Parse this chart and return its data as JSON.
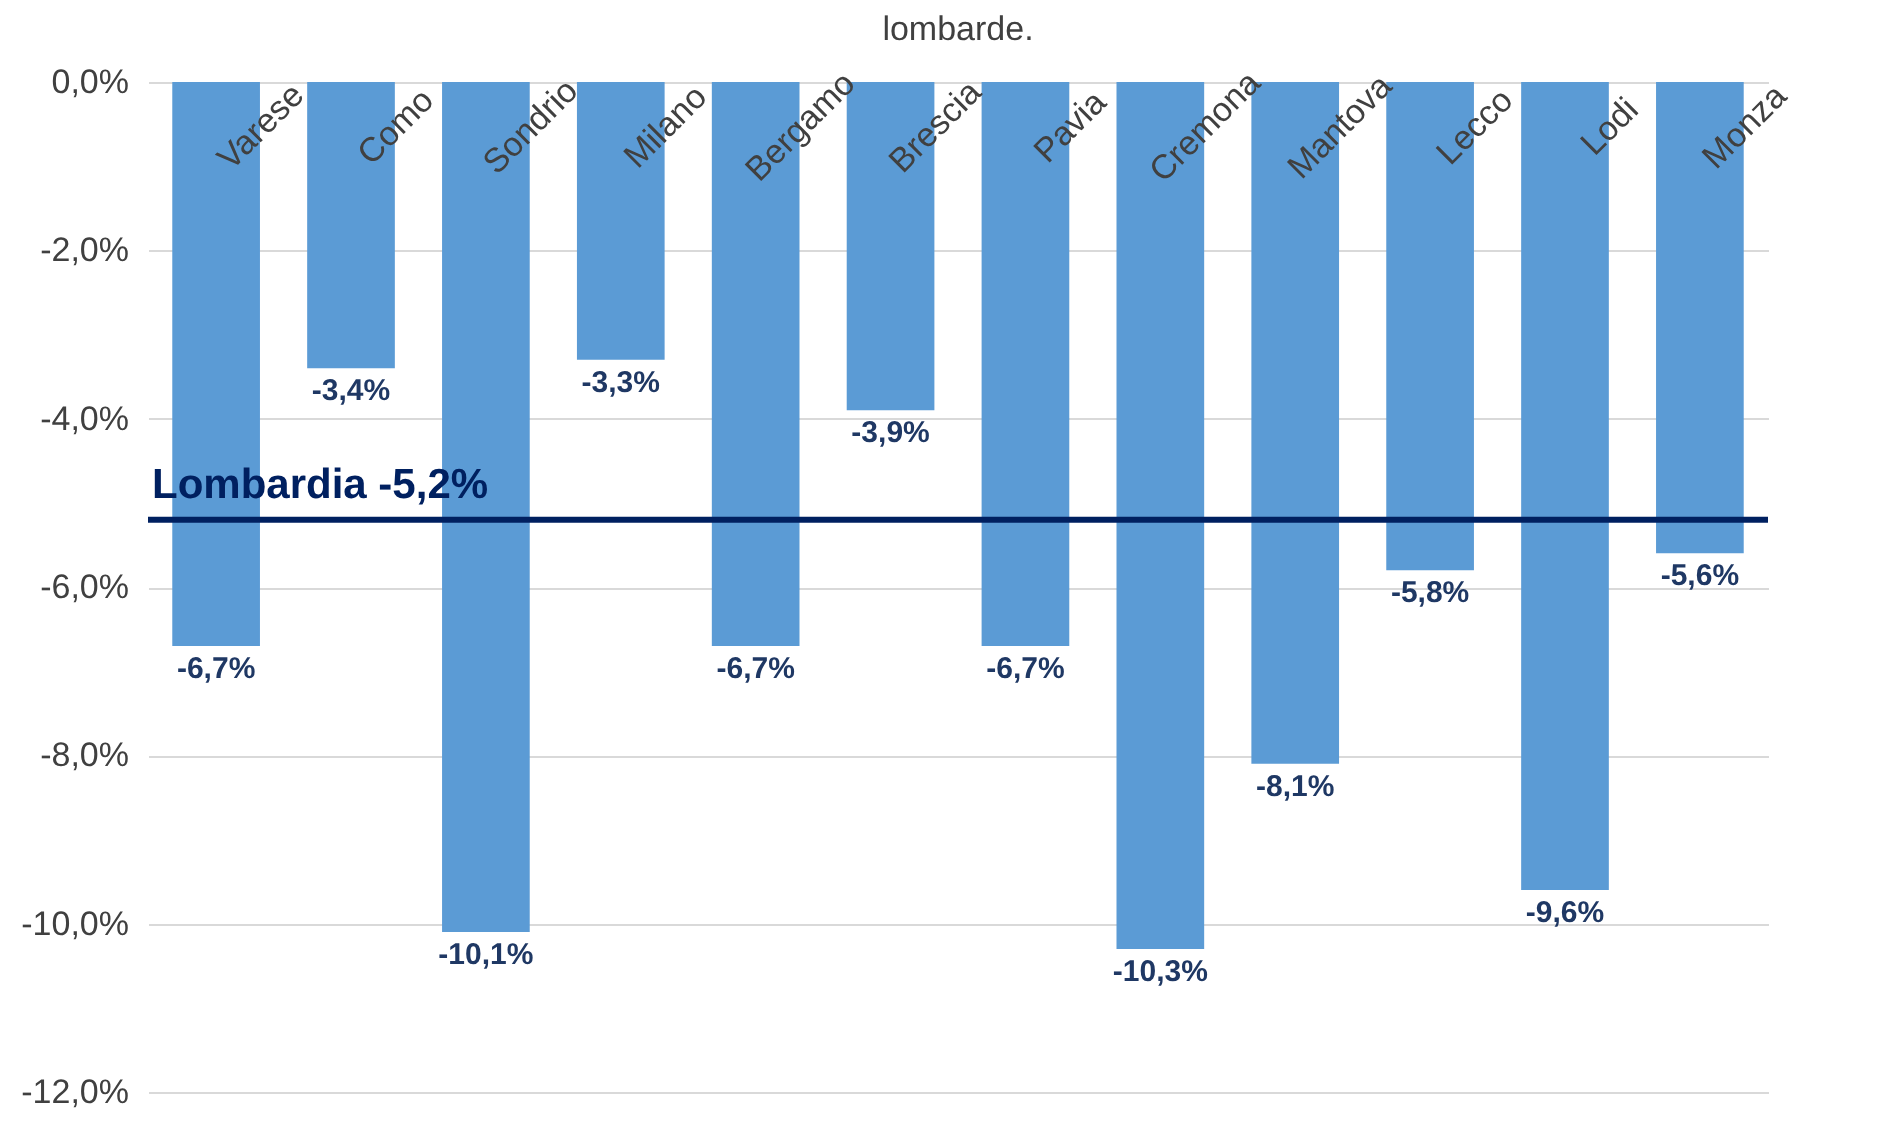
{
  "chart_data": {
    "type": "bar",
    "title": "lombarde.",
    "categories": [
      "Varese",
      "Como",
      "Sondrio",
      "Milano",
      "Bergamo",
      "Brescia",
      "Pavia",
      "Cremona",
      "Mantova",
      "Lecco",
      "Lodi",
      "Monza"
    ],
    "values": [
      -6.7,
      -3.4,
      -10.1,
      -3.3,
      -6.7,
      -3.9,
      -6.7,
      -10.3,
      -8.1,
      -5.8,
      -9.6,
      -5.6
    ],
    "value_labels": [
      "-6,7%",
      "-3,4%",
      "-10,1%",
      "-3,3%",
      "-6,7%",
      "-3,9%",
      "-6,7%",
      "-10,3%",
      "-8,1%",
      "-5,8%",
      "-9,6%",
      "-5,6%"
    ],
    "color": "#5b9bd5",
    "ylim": [
      -12,
      0
    ],
    "yticks": [
      {
        "value": 0,
        "label": "0,0%"
      },
      {
        "value": -2,
        "label": "-2,0%"
      },
      {
        "value": -4,
        "label": "-4,0%"
      },
      {
        "value": -6,
        "label": "-6,0%"
      },
      {
        "value": -8,
        "label": "-8,0%"
      },
      {
        "value": -10,
        "label": "-10,0%"
      },
      {
        "value": -12,
        "label": "-12,0%"
      }
    ],
    "grid": "y",
    "ref_lines": [
      {
        "axis": "y",
        "value": -5.2,
        "label": "Lombardia -5,2%",
        "color": "#002060"
      }
    ]
  }
}
